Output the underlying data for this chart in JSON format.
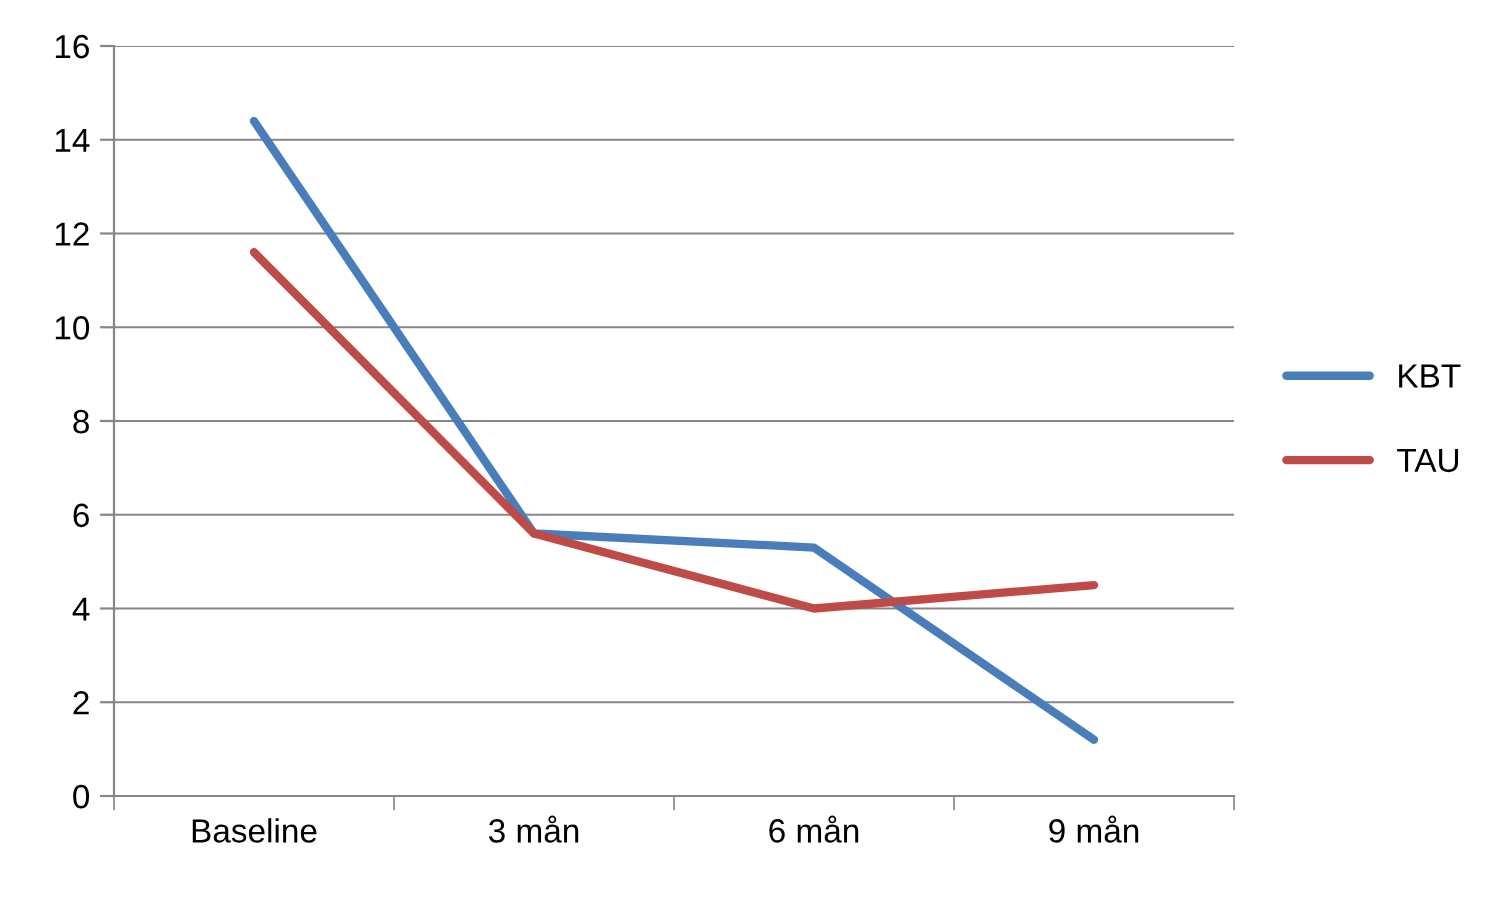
{
  "chart_data": {
    "type": "line",
    "categories": [
      "Baseline",
      "3 mån",
      "6 mån",
      "9 mån"
    ],
    "series": [
      {
        "name": "KBT",
        "color": "#4a7ebb",
        "values": [
          14.4,
          5.6,
          5.3,
          1.2
        ]
      },
      {
        "name": "TAU",
        "color": "#be4b48",
        "values": [
          11.6,
          5.6,
          4.0,
          4.5
        ]
      }
    ],
    "ylim": [
      0,
      16
    ],
    "yticks": [
      0,
      2,
      4,
      6,
      8,
      10,
      12,
      14,
      16
    ],
    "grid": "y",
    "legend": "right",
    "marker": "none",
    "line_style": "solid"
  }
}
